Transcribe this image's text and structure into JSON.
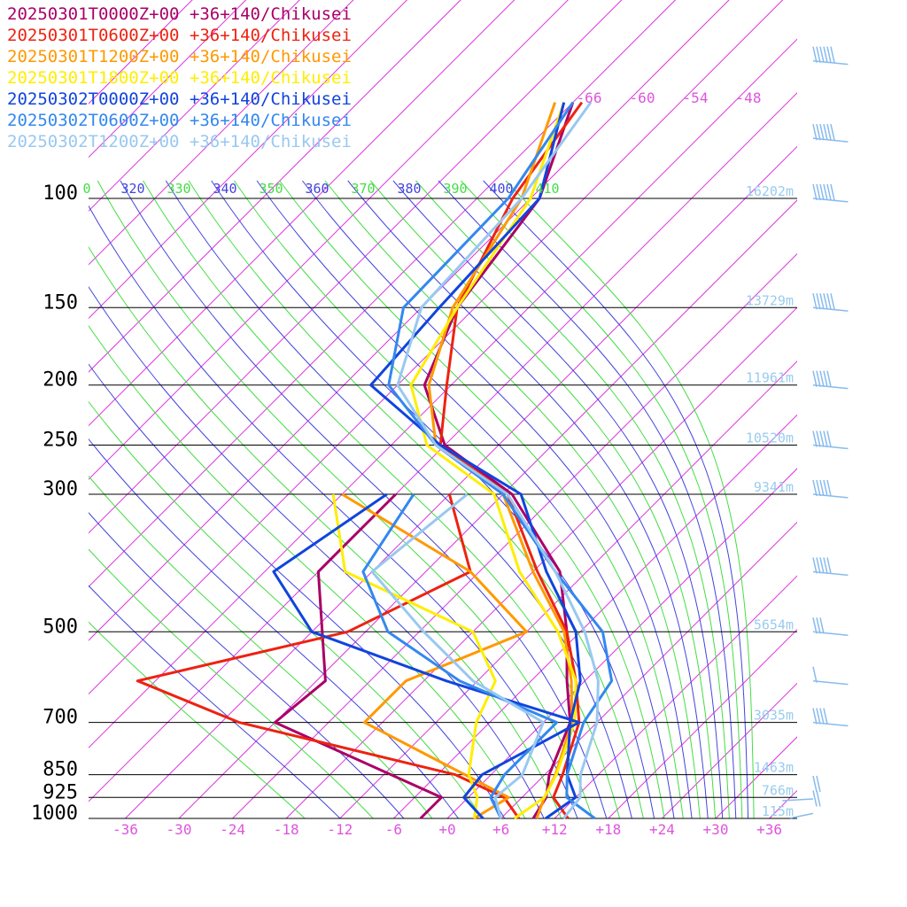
{
  "chart_data": {
    "type": "line",
    "title": "",
    "xlabel": "",
    "ylabel": "",
    "y_scale": "log-pressure",
    "skew": "skew-T",
    "pressure_ticks": [
      "100",
      "150",
      "200",
      "250",
      "300",
      "500",
      "700",
      "850",
      "925",
      "1000"
    ],
    "temperature_ticks": [
      "-36",
      "-30",
      "-24",
      "-18",
      "-12",
      "-6",
      "+0",
      "+6",
      "+12",
      "+18",
      "+24",
      "+30",
      "+36"
    ],
    "height_labels": [
      {
        "p": 100,
        "label": "16202m"
      },
      {
        "p": 150,
        "label": "13729m"
      },
      {
        "p": 200,
        "label": "11961m"
      },
      {
        "p": 250,
        "label": "10520m"
      },
      {
        "p": 300,
        "label": "9341m"
      },
      {
        "p": 500,
        "label": "5654m"
      },
      {
        "p": 700,
        "label": "3035m"
      },
      {
        "p": 850,
        "label": "1463m"
      },
      {
        "p": 925,
        "label": "766m"
      },
      {
        "p": 1000,
        "label": "115m"
      }
    ],
    "theta_e_labels": [
      "0",
      "320",
      "330",
      "340",
      "350",
      "360",
      "370",
      "380",
      "390",
      "400",
      "410"
    ],
    "isotherm_top_labels": [
      "-66",
      "-60",
      "-54",
      "-48"
    ],
    "colors": {
      "isotherm": "#dd33dd",
      "isotherm_label": "#dd55dd",
      "theta_e_blue": "#4444dd",
      "theta_e_green": "#44dd44",
      "height_label": "#99ccee",
      "wind_barb": "#88bbee",
      "isobar": "#000000"
    },
    "series": [
      {
        "name": "20250301T0000Z+00 +36+140/Chikusei",
        "color": "#aa0066",
        "temperature": [
          [
            1000,
            9.6
          ],
          [
            925,
            8.7
          ],
          [
            850,
            6.5
          ],
          [
            700,
            3.0
          ],
          [
            600,
            -2.0
          ],
          [
            500,
            -7.5
          ],
          [
            400,
            -15.0
          ],
          [
            300,
            -29.0
          ],
          [
            250,
            -42.0
          ],
          [
            200,
            -51.0
          ],
          [
            150,
            -56.0
          ],
          [
            100,
            -59.0
          ],
          [
            70,
            -66.0
          ]
        ],
        "dewpoint": [
          [
            1000,
            -3.0
          ],
          [
            925,
            -3.0
          ],
          [
            700,
            -30.0
          ],
          [
            600,
            -29.0
          ],
          [
            400,
            -42.0
          ],
          [
            300,
            -42.0
          ]
        ]
      },
      {
        "name": "20250301T0600Z+00 +36+140/Chikusei",
        "color": "#ee2211",
        "temperature": [
          [
            1000,
            13.5
          ],
          [
            925,
            9.5
          ],
          [
            850,
            8.0
          ],
          [
            700,
            4.0
          ],
          [
            600,
            -1.0
          ],
          [
            500,
            -7.5
          ],
          [
            400,
            -17.5
          ],
          [
            300,
            -29.5
          ],
          [
            250,
            -42.5
          ],
          [
            200,
            -48.5
          ],
          [
            150,
            -56.0
          ],
          [
            100,
            -62.0
          ],
          [
            70,
            -65.0
          ]
        ],
        "dewpoint": [
          [
            1000,
            8.0
          ],
          [
            925,
            4.0
          ],
          [
            850,
            -4.0
          ],
          [
            700,
            -34.0
          ],
          [
            600,
            -50.0
          ],
          [
            500,
            -32.0
          ],
          [
            400,
            -25.0
          ],
          [
            300,
            -36.0
          ]
        ]
      },
      {
        "name": "20250301T1200Z+00 +36+140/Chikusei",
        "color": "#ff9900",
        "temperature": [
          [
            1000,
            10.0
          ],
          [
            925,
            8.5
          ],
          [
            850,
            7.2
          ],
          [
            700,
            3.2
          ],
          [
            600,
            -1.5
          ],
          [
            500,
            -7.8
          ],
          [
            400,
            -18.0
          ],
          [
            300,
            -30.0
          ],
          [
            250,
            -43.0
          ],
          [
            200,
            -50.5
          ],
          [
            150,
            -56.5
          ],
          [
            100,
            -61.0
          ],
          [
            70,
            -68.0
          ]
        ],
        "dewpoint": [
          [
            1000,
            3.0
          ],
          [
            925,
            4.5
          ],
          [
            700,
            -20.0
          ],
          [
            600,
            -20.0
          ],
          [
            500,
            -12.0
          ],
          [
            400,
            -25.0
          ],
          [
            300,
            -48.0
          ]
        ]
      },
      {
        "name": "20250301T1800Z+00 +36+140/Chikusei",
        "color": "#ffee00",
        "temperature": [
          [
            1000,
            7.5
          ],
          [
            925,
            8.5
          ],
          [
            850,
            7.3
          ],
          [
            700,
            3.5
          ],
          [
            600,
            -1.0
          ],
          [
            500,
            -8.5
          ],
          [
            400,
            -19.5
          ],
          [
            300,
            -31.0
          ],
          [
            250,
            -44.0
          ],
          [
            200,
            -52.5
          ],
          [
            150,
            -56.0
          ],
          [
            100,
            -60.0
          ],
          [
            70,
            -67.0
          ]
        ],
        "dewpoint": [
          [
            1000,
            3.0
          ],
          [
            925,
            1.0
          ],
          [
            850,
            -2.5
          ],
          [
            700,
            -7.5
          ],
          [
            600,
            -10.0
          ],
          [
            500,
            -18.0
          ],
          [
            400,
            -39.0
          ],
          [
            300,
            -49.0
          ]
        ]
      },
      {
        "name": "20250302T0000Z+00 +36+140/Chikusei",
        "color": "#1144dd",
        "temperature": [
          [
            1000,
            11.0
          ],
          [
            925,
            12.0
          ],
          [
            850,
            8.5
          ],
          [
            700,
            3.0
          ],
          [
            600,
            -0.5
          ],
          [
            500,
            -6.5
          ],
          [
            400,
            -16.5
          ],
          [
            300,
            -28.0
          ],
          [
            250,
            -42.5
          ],
          [
            200,
            -57.0
          ],
          [
            150,
            -58.0
          ],
          [
            100,
            -59.0
          ],
          [
            70,
            -67.0
          ]
        ],
        "dewpoint": [
          [
            1000,
            4.0
          ],
          [
            925,
            -0.5
          ],
          [
            850,
            -1.0
          ],
          [
            700,
            4.0
          ],
          [
            600,
            -15.5
          ],
          [
            500,
            -36.0
          ],
          [
            400,
            -47.0
          ],
          [
            300,
            -43.0
          ]
        ]
      },
      {
        "name": "20250302T0600Z+00 +36+140/Chikusei",
        "color": "#3388ee",
        "temperature": [
          [
            1000,
            16.5
          ],
          [
            925,
            11.0
          ],
          [
            850,
            8.5
          ],
          [
            700,
            4.5
          ],
          [
            600,
            3.0
          ],
          [
            500,
            -3.5
          ],
          [
            400,
            -15.5
          ],
          [
            300,
            -30.0
          ],
          [
            250,
            -43.0
          ],
          [
            200,
            -55.0
          ],
          [
            150,
            -62.0
          ],
          [
            100,
            -62.5
          ],
          [
            70,
            -66.0
          ]
        ],
        "dewpoint": [
          [
            1000,
            6.0
          ],
          [
            925,
            2.5
          ],
          [
            850,
            1.5
          ],
          [
            700,
            1.5
          ],
          [
            600,
            -14.0
          ],
          [
            500,
            -27.5
          ],
          [
            400,
            -37.0
          ],
          [
            300,
            -40.0
          ]
        ]
      },
      {
        "name": "20250302T1200Z+00 +36+140/Chikusei",
        "color": "#99c8f0",
        "temperature": [
          [
            1000,
            13.0
          ],
          [
            925,
            12.5
          ],
          [
            850,
            10.0
          ],
          [
            700,
            6.0
          ],
          [
            600,
            1.5
          ],
          [
            500,
            -5.5
          ],
          [
            400,
            -15.5
          ],
          [
            300,
            -29.5
          ],
          [
            250,
            -43.0
          ],
          [
            200,
            -54.0
          ],
          [
            150,
            -60.0
          ],
          [
            100,
            -61.0
          ],
          [
            70,
            -64.0
          ]
        ],
        "dewpoint": [
          [
            1000,
            6.0
          ],
          [
            925,
            3.0
          ],
          [
            850,
            3.5
          ],
          [
            700,
            0.0
          ],
          [
            600,
            -12.5
          ],
          [
            500,
            -23.5
          ],
          [
            400,
            -36.0
          ],
          [
            300,
            -34.0
          ]
        ]
      }
    ],
    "wind_barbs": [
      {
        "p": 60,
        "speed_kt": 60,
        "dir_deg": 260
      },
      {
        "p": 80,
        "speed_kt": 60,
        "dir_deg": 260
      },
      {
        "p": 100,
        "speed_kt": 55,
        "dir_deg": 260
      },
      {
        "p": 150,
        "speed_kt": 55,
        "dir_deg": 260
      },
      {
        "p": 200,
        "speed_kt": 45,
        "dir_deg": 260
      },
      {
        "p": 250,
        "speed_kt": 50,
        "dir_deg": 260
      },
      {
        "p": 300,
        "speed_kt": 50,
        "dir_deg": 260
      },
      {
        "p": 400,
        "speed_kt": 45,
        "dir_deg": 260
      },
      {
        "p": 500,
        "speed_kt": 25,
        "dir_deg": 260
      },
      {
        "p": 600,
        "speed_kt": 10,
        "dir_deg": 260
      },
      {
        "p": 700,
        "speed_kt": 40,
        "dir_deg": 260
      },
      {
        "p": 900,
        "speed_kt": 15,
        "dir_deg": 60
      },
      {
        "p": 950,
        "speed_kt": 20,
        "dir_deg": 40
      }
    ]
  }
}
